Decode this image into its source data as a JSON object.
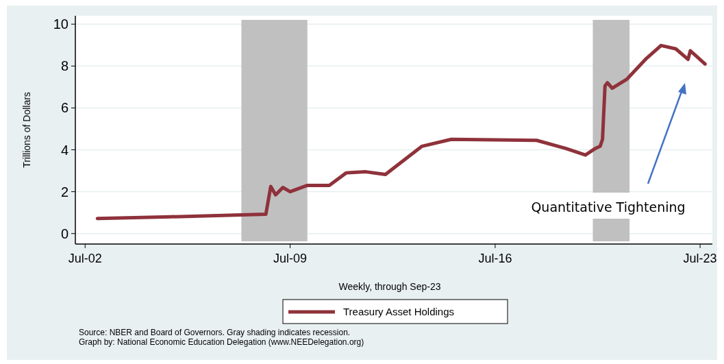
{
  "chart_data": {
    "type": "line",
    "xlabel": "Weekly, through Sep-23",
    "ylabel": "Trillions of Dollars",
    "x": [
      "2002-12",
      "2005-06",
      "2008-09",
      "2008-11",
      "2009-01",
      "2009-04",
      "2009-07",
      "2010-02",
      "2010-11",
      "2011-06",
      "2012-02",
      "2012-10",
      "2014-01",
      "2015-01",
      "2017-12",
      "2018-12",
      "2019-08",
      "2019-12",
      "2020-02",
      "2020-03",
      "2020-04",
      "2020-05",
      "2020-07",
      "2021-01",
      "2021-09",
      "2022-03",
      "2022-09",
      "2023-02",
      "2023-03",
      "2023-09"
    ],
    "series": [
      {
        "name": "Treasury Asset Holdings",
        "color": "#8f323b",
        "values": [
          0.72,
          0.8,
          0.92,
          2.25,
          1.85,
          2.2,
          2.0,
          2.3,
          2.3,
          2.9,
          2.95,
          2.82,
          4.17,
          4.5,
          4.45,
          4.06,
          3.75,
          4.06,
          4.17,
          4.5,
          7.05,
          7.2,
          6.94,
          7.38,
          8.37,
          8.98,
          8.82,
          8.32,
          8.73,
          8.1
        ]
      }
    ],
    "xlim": [
      "2002-03",
      "2023-12"
    ],
    "xticks": [
      {
        "value": "2002-07-01",
        "label": "Jul-02"
      },
      {
        "value": "2009-07-01",
        "label": "Jul-09"
      },
      {
        "value": "2016-07-01",
        "label": "Jul-16"
      },
      {
        "value": "2023-07-01",
        "label": "Jul-23"
      }
    ],
    "ylim": [
      -0.5,
      10.4
    ],
    "yticks": [
      0,
      2,
      4,
      6,
      8,
      10
    ],
    "grid": "y",
    "legend": "bottom",
    "line_style": "solid",
    "marker": "none",
    "bands": [
      {
        "axis": "x",
        "from": "2007-11",
        "to": "2010-02",
        "color": "#c0c0c0"
      },
      {
        "axis": "x",
        "from": "2019-11",
        "to": "2021-02",
        "color": "#c0c0c0"
      }
    ],
    "annotations": [
      "Quantitative Tightening",
      "Source: NBER and Board of Governors. Gray shading indicates recession.",
      "Graph by: National Economic Education Delegation (www.NEEDelegation.org)"
    ]
  }
}
